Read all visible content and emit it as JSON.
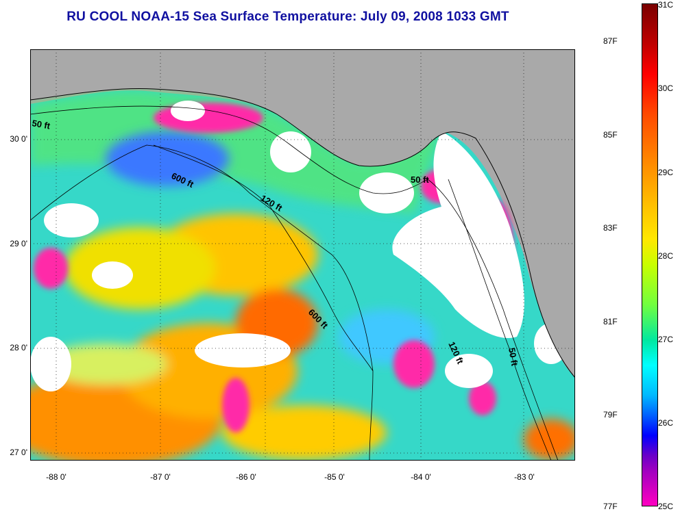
{
  "title": "RU COOL  NOAA-15  Sea Surface Temperature:  July 09, 2008 1033 GMT",
  "map": {
    "lat_labels": [
      "30 0'",
      "29 0'",
      "28 0'",
      "27 0'"
    ],
    "lon_labels": [
      "-88 0'",
      "-87 0'",
      "-86 0'",
      "-85 0'",
      "-84 0'",
      "-83 0'"
    ],
    "contour_labels": [
      "50 ft",
      "600 ft",
      "120 ft",
      "50 ft",
      "600 ft",
      "120 ft",
      "50 ft"
    ],
    "colors": {
      "land": "#a9a9a9",
      "cloud": "#ffffff",
      "warm": "#ff9a00",
      "cool": "#2ad4d0"
    }
  },
  "colorbar": {
    "celsius": [
      "31C",
      "30C",
      "29C",
      "28C",
      "27C",
      "26C",
      "25C"
    ],
    "fahrenheit": [
      "87F",
      "85F",
      "83F",
      "81F",
      "79F",
      "77F"
    ]
  }
}
